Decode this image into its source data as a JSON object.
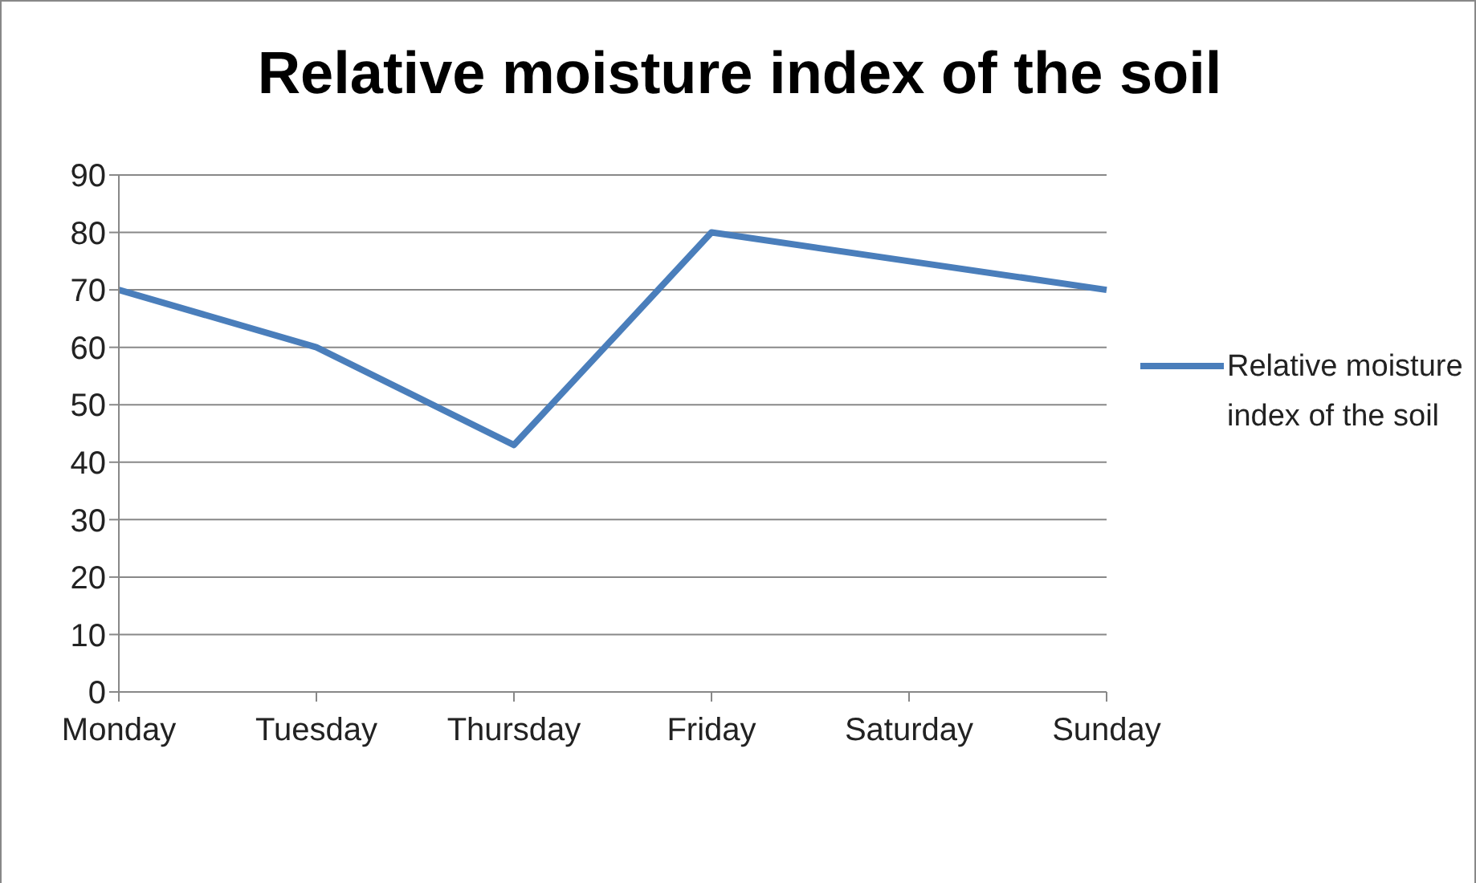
{
  "chart_data": {
    "type": "line",
    "title": "Relative moisture index of the soil",
    "categories": [
      "Monday",
      "Tuesday",
      "Thursday",
      "Friday",
      "Saturday",
      "Sunday"
    ],
    "series": [
      {
        "name": "Relative moisture index of the soil",
        "color": "#4a7ebb",
        "values": [
          70,
          60,
          43,
          80,
          75,
          70
        ]
      }
    ],
    "ylim": [
      0,
      90
    ],
    "yticks": [
      0,
      10,
      20,
      30,
      40,
      50,
      60,
      70,
      80,
      90
    ],
    "grid": "y",
    "legend": "right",
    "marker": "none",
    "line_style": "solid"
  }
}
